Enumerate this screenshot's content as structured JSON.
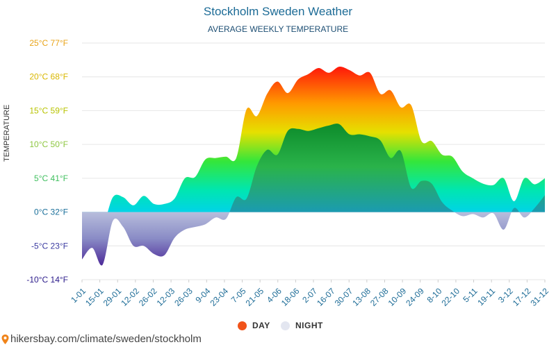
{
  "header": {
    "title": "Stockholm Sweden Weather",
    "subtitle": "AVERAGE WEEKLY TEMPERATURE"
  },
  "axis": {
    "ylabel": "TEMPERATURE"
  },
  "legend": {
    "day_label": "DAY",
    "night_label": "NIGHT",
    "day_color": "#f1531a",
    "night_color": "#e3e6f0"
  },
  "footer": {
    "source": "hikersbay.com/climate/sweden/stockholm"
  },
  "chart_data": {
    "type": "area",
    "title": "Stockholm Sweden Weather",
    "subtitle": "AVERAGE WEEKLY TEMPERATURE",
    "ylabel": "TEMPERATURE",
    "xlabel": "",
    "ylim": [
      -10,
      25
    ],
    "grid": true,
    "legend_position": "bottom",
    "ytick_values": [
      25,
      20,
      15,
      10,
      5,
      0,
      -5,
      -10
    ],
    "yticks": [
      "25°C 77°F",
      "20°C 68°F",
      "15°C 59°F",
      "10°C 50°F",
      "5°C 41°F",
      "0°C 32°F",
      "-5°C 23°F",
      "-10°C 14°F"
    ],
    "ytick_colors": [
      "#e8a317",
      "#d9b700",
      "#b8c300",
      "#8cc63f",
      "#3fbf5e",
      "#1a6f9a",
      "#3a3aa0",
      "#2a1a8a"
    ],
    "xtick_labels": [
      "1-01",
      "15-01",
      "29-01",
      "12-02",
      "26-02",
      "12-03",
      "26-03",
      "9-04",
      "23-04",
      "7-05",
      "21-05",
      "4-06",
      "18-06",
      "2-07",
      "16-07",
      "30-07",
      "13-08",
      "27-08",
      "10-09",
      "24-09",
      "8-10",
      "22-10",
      "5-11",
      "19-11",
      "3-12",
      "17-12",
      "31-12"
    ],
    "series": [
      {
        "name": "DAY",
        "values": [
          -1.0,
          -0.5,
          -2.0,
          2.2,
          2.2,
          1.0,
          2.4,
          1.2,
          1.2,
          2.0,
          5.0,
          5.2,
          7.8,
          8.0,
          8.2,
          8.0,
          15.2,
          14.2,
          17.5,
          19.3,
          17.6,
          19.6,
          20.4,
          21.3,
          20.6,
          21.5,
          21.0,
          20.2,
          20.6,
          17.5,
          18.0,
          15.5,
          15.8,
          10.5,
          10.5,
          8.5,
          8.2,
          6.0,
          5.0,
          4.2,
          4.0,
          5.0,
          1.6,
          5.0,
          4.1,
          5.0
        ]
      },
      {
        "name": "NIGHT",
        "values": [
          -7.0,
          -5.3,
          -7.8,
          -1.3,
          -2.2,
          -5.0,
          -5.0,
          -6.2,
          -6.4,
          -3.8,
          -2.6,
          -2.2,
          -1.8,
          -0.8,
          -1.0,
          2.2,
          2.0,
          6.8,
          9.2,
          8.5,
          12.0,
          12.3,
          12.0,
          12.4,
          12.8,
          13.0,
          11.5,
          11.5,
          11.2,
          10.6,
          8.0,
          9.0,
          3.6,
          4.6,
          4.2,
          1.5,
          0.2,
          -0.6,
          -0.3,
          -0.8,
          -0.2,
          -2.6,
          0.6,
          -0.8,
          0.6,
          2.5
        ]
      }
    ]
  }
}
